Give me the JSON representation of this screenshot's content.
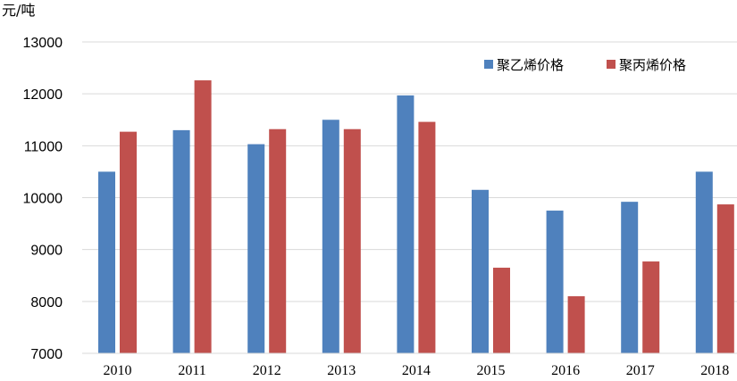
{
  "chart_data": {
    "type": "bar",
    "ylabel": "元/吨",
    "ylim": [
      7000,
      13000
    ],
    "ytick_step": 1000,
    "grid": true,
    "legend_position": "top-right",
    "categories": [
      "2010",
      "2011",
      "2012",
      "2013",
      "2014",
      "2015",
      "2016",
      "2017",
      "2018"
    ],
    "series": [
      {
        "name": "聚乙烯价格",
        "color": "#4f81bd",
        "values": [
          10500,
          11300,
          11030,
          11500,
          11970,
          10150,
          9750,
          9920,
          10500
        ]
      },
      {
        "name": "聚丙烯价格",
        "color": "#c0504d",
        "values": [
          11270,
          12260,
          11320,
          11320,
          11460,
          8650,
          8100,
          8770,
          9870
        ]
      }
    ]
  }
}
